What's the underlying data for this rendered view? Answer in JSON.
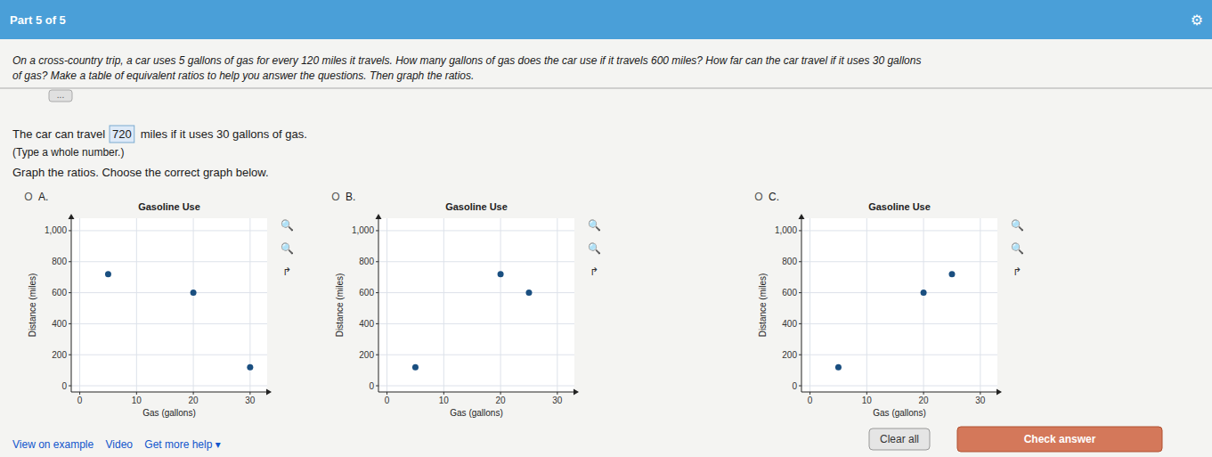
{
  "chart_data": [
    {
      "type": "scatter",
      "title": "Gasoline Use",
      "x_label": "Gas (gallons)",
      "y_label": "Distance (miles)",
      "x": [
        5,
        20,
        30
      ],
      "series": [
        {
          "color": "#1a4f80",
          "values": [
            720,
            600,
            120
          ]
        }
      ],
      "xlim": [
        -1.5,
        33
      ],
      "ylim": [
        -40,
        1080
      ],
      "xticks": [
        0,
        10,
        20,
        30
      ],
      "yticks": [
        0,
        200,
        400,
        600,
        800,
        {
          "value": 1000,
          "label": "1,000"
        }
      ],
      "grid": true,
      "annotations": [
        "Part 5 of 5",
        "⚙",
        "On a cross-country trip, a car uses 5 gallons of gas for every 120 miles it travels. How many gallons of gas does the car use if it travels 600 miles? How far can the car travel if it uses 30 gallons",
        "of gas? Make a table of equivalent ratios to help you answer the questions. Then graph the ratios.",
        "...",
        "The car can travel",
        "720",
        "miles if it uses 30 gallons of gas.",
        "(Type a whole number.)",
        "Graph the ratios. Choose the correct graph below.",
        "View on example    Video    Get more help ▾",
        "Clear all",
        "Check answer",
        "O",
        "A.",
        "🔍",
        "🔍",
        "↱"
      ]
    },
    {
      "type": "scatter",
      "title": "Gasoline Use",
      "x_label": "Gas (gallons)",
      "y_label": "Distance (miles)",
      "x": [
        5,
        20,
        25
      ],
      "series": [
        {
          "color": "#1a4f80",
          "values": [
            120,
            720,
            600
          ]
        }
      ],
      "xlim": [
        -1.5,
        33
      ],
      "ylim": [
        -40,
        1080
      ],
      "xticks": [
        0,
        10,
        20,
        30
      ],
      "yticks": [
        0,
        200,
        400,
        600,
        800,
        {
          "value": 1000,
          "label": "1,000"
        }
      ],
      "grid": true,
      "annotations": [
        "O",
        "B.",
        "🔍",
        "🔍",
        "↱"
      ]
    },
    {
      "type": "scatter",
      "title": "Gasoline Use",
      "x_label": "Gas (gallons)",
      "y_label": "Distance (miles)",
      "x": [
        5,
        20,
        25
      ],
      "series": [
        {
          "color": "#1a4f80",
          "values": [
            120,
            600,
            720
          ]
        }
      ],
      "xlim": [
        -1.5,
        33
      ],
      "ylim": [
        -40,
        1080
      ],
      "xticks": [
        0,
        10,
        20,
        30
      ],
      "yticks": [
        0,
        200,
        400,
        600,
        800,
        {
          "value": 1000,
          "label": "1,000"
        }
      ],
      "grid": true,
      "annotations": [
        "O",
        "C.",
        "🔍",
        "🔍",
        "↱"
      ]
    }
  ]
}
